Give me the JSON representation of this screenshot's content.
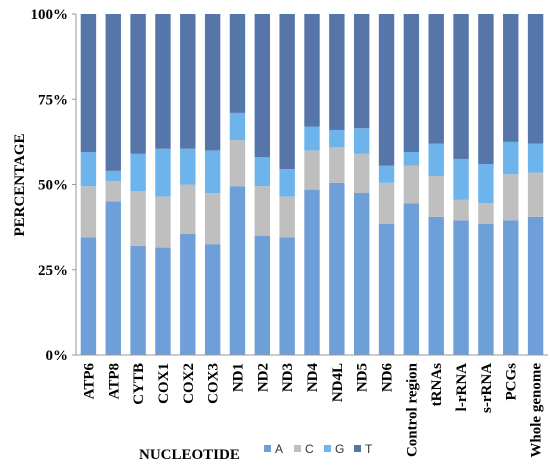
{
  "chart_data": {
    "type": "bar",
    "stacked": true,
    "title": "",
    "xlabel": "NUCLEOTIDE",
    "ylabel": "PERCENTAGE",
    "ylim": [
      0,
      100
    ],
    "yticks": [
      "0%",
      "25%",
      "50%",
      "75%",
      "100%"
    ],
    "ytick_values": [
      0,
      25,
      50,
      75,
      100
    ],
    "grid": false,
    "legend_position": "bottom",
    "categories": [
      "ATP6",
      "ATP8",
      "CYTB",
      "COX1",
      "COX2",
      "COX3",
      "ND1",
      "ND2",
      "ND3",
      "ND4",
      "ND4L",
      "ND5",
      "ND6",
      "Control region",
      "tRNAs",
      "l-rRNA",
      "s-rRNA",
      "PCGs",
      "Whole genome"
    ],
    "series": [
      {
        "name": "A",
        "color": "#6f9fd8",
        "values": [
          34.5,
          45.0,
          32.0,
          31.5,
          35.5,
          32.5,
          49.5,
          35.0,
          34.5,
          48.5,
          50.5,
          47.5,
          38.5,
          44.5,
          40.5,
          39.5,
          38.5,
          39.5,
          40.5
        ]
      },
      {
        "name": "C",
        "color": "#bfbfbf",
        "values": [
          15.0,
          6.0,
          16.0,
          15.0,
          14.5,
          15.0,
          13.5,
          14.5,
          12.0,
          11.5,
          10.5,
          11.5,
          12.0,
          11.0,
          12.0,
          6.0,
          6.0,
          13.5,
          13.0
        ]
      },
      {
        "name": "G",
        "color": "#6db3ec",
        "values": [
          10.0,
          3.0,
          11.0,
          14.0,
          10.5,
          12.5,
          8.0,
          8.5,
          8.0,
          7.0,
          5.0,
          7.5,
          5.0,
          4.0,
          9.5,
          12.0,
          11.5,
          9.5,
          8.5
        ]
      },
      {
        "name": "T",
        "color": "#5675a8",
        "values": [
          40.5,
          46.0,
          41.0,
          39.5,
          39.5,
          40.0,
          29.0,
          42.0,
          45.5,
          33.0,
          34.0,
          33.5,
          44.5,
          40.5,
          38.0,
          42.5,
          44.0,
          37.5,
          38.0
        ]
      }
    ]
  }
}
